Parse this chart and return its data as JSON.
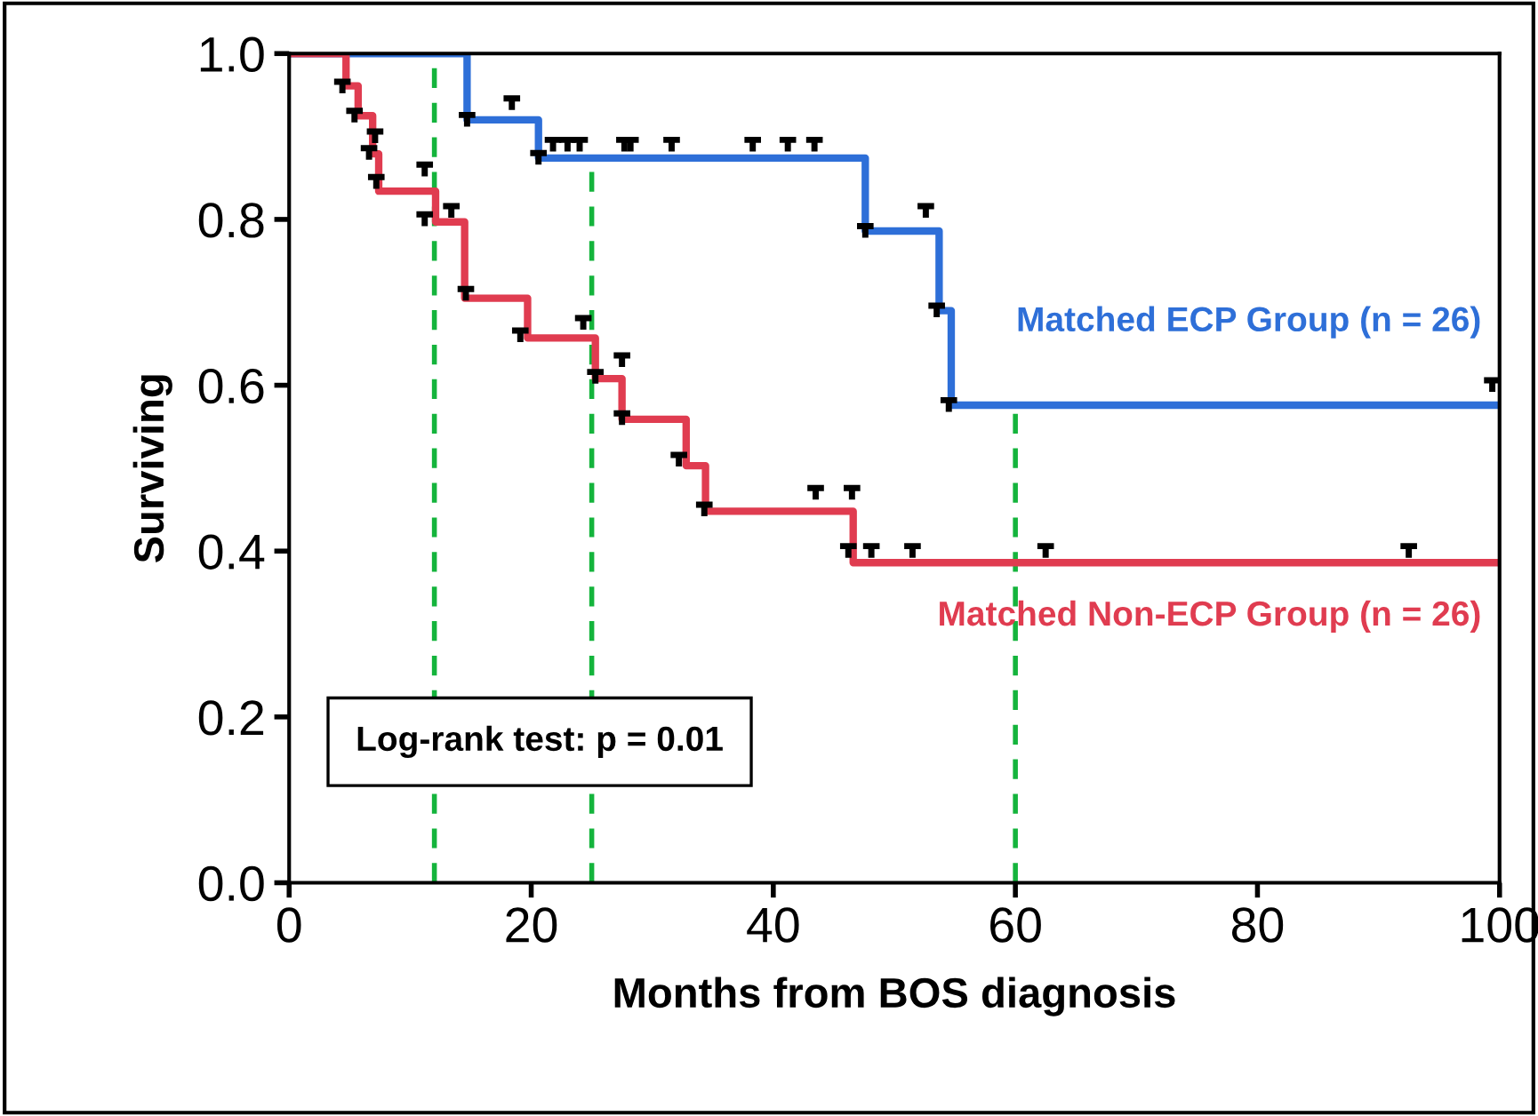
{
  "chart_data": {
    "type": "step",
    "xlabel": "Months from BOS diagnosis",
    "ylabel": "Surviving",
    "xlim": [
      0,
      100
    ],
    "xticks": [
      0,
      20,
      40,
      60,
      80,
      100
    ],
    "ylim": [
      0,
      1.0
    ],
    "yticks": [
      {
        "value": 0,
        "label": "0.0"
      },
      0.2,
      0.4,
      0.6,
      0.8,
      {
        "value": 1,
        "label": "1.0"
      }
    ],
    "grid": false,
    "legend": false,
    "series": [
      {
        "name": "Matched ECP Group (n = 26)",
        "color": "#2e6fd8",
        "x": [
          0,
          14.7,
          20.6,
          47.6,
          53.7,
          54.7,
          100
        ],
        "values": [
          1.0,
          0.92,
          0.874,
          0.786,
          0.69,
          0.576,
          0.576
        ]
      },
      {
        "name": "Matched Non-ECP Group (n = 26)",
        "color": "#e03c50",
        "x": [
          0,
          4.7,
          5.7,
          6.9,
          7.4,
          12.1,
          14.5,
          19.7,
          25.3,
          27.5,
          32.8,
          34.4,
          46.6,
          100
        ],
        "values": [
          1.0,
          0.961,
          0.925,
          0.879,
          0.834,
          0.797,
          0.705,
          0.657,
          0.608,
          0.559,
          0.503,
          0.448,
          0.386,
          0.386
        ]
      },
      {
        "type": "scatter",
        "color": "#000000",
        "x": [
          14.7,
          18.4,
          20.6,
          21.8,
          23.0,
          24.0,
          27.7,
          28.2,
          31.6,
          38.3,
          41.2,
          43.4,
          47.6,
          52.6,
          53.5,
          54.5,
          99.4
        ],
        "values": [
          0.92,
          0.94,
          0.874,
          0.89,
          0.89,
          0.89,
          0.89,
          0.89,
          0.89,
          0.89,
          0.89,
          0.89,
          0.786,
          0.81,
          0.69,
          0.576,
          0.6
        ]
      },
      {
        "type": "scatter",
        "color": "#000000",
        "x": [
          4.4,
          5.4,
          6.6,
          7.1,
          7.2,
          11.2,
          11.2,
          13.4,
          14.6,
          19.1,
          24.3,
          25.3,
          27.5,
          27.5,
          32.2,
          34.3,
          43.5,
          46.5,
          46.2,
          48.1,
          51.5,
          62.5,
          92.5
        ],
        "values": [
          0.96,
          0.925,
          0.88,
          0.9,
          0.845,
          0.86,
          0.8,
          0.81,
          0.71,
          0.66,
          0.675,
          0.61,
          0.63,
          0.56,
          0.51,
          0.45,
          0.47,
          0.47,
          0.4,
          0.4,
          0.4,
          0.4,
          0.4
        ]
      }
    ],
    "ref_lines": [
      {
        "axis": "x",
        "value": 12,
        "color": "#14b43c",
        "line_style": "dashed"
      },
      {
        "axis": "x",
        "value": 25,
        "color": "#14b43c",
        "line_style": "dashed"
      },
      {
        "axis": "x",
        "value": 60,
        "color": "#14b43c",
        "line_style": "dashed"
      }
    ],
    "annotations": [
      "Log-rank test: p = 0.01"
    ]
  }
}
